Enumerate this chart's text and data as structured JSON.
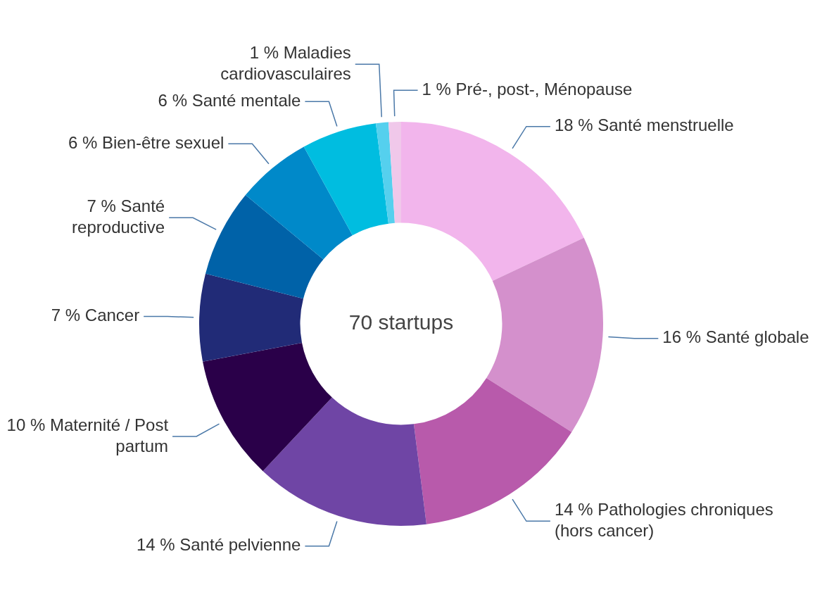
{
  "chart_data": {
    "type": "donut",
    "categories": [
      "Santé menstruelle",
      "Santé globale",
      "Pathologies chroniques (hors cancer)",
      "Santé pelvienne",
      "Maternité / Post partum",
      "Cancer",
      "Santé reproductive",
      "Bien-être sexuel",
      "Santé mentale",
      "Maladies cardiovasculaires",
      "Pré-, post-, Ménopause"
    ],
    "values": [
      18,
      16,
      14,
      14,
      10,
      7,
      7,
      6,
      6,
      1,
      1
    ],
    "value_labels": [
      "18 %",
      "16 %",
      "14 %",
      "14 %",
      "10 %",
      "7 %",
      "7 %",
      "6 %",
      "6 %",
      "1 %",
      "1 %"
    ],
    "colors": [
      "#f2b5ec",
      "#d490cc",
      "#b85aab",
      "#6f45a5",
      "#2a0049",
      "#212b77",
      "#0062a8",
      "#0089c9",
      "#00bde0",
      "#55d0ee",
      "#f0c8ea"
    ],
    "annotations": [
      "70 startups"
    ],
    "legend": false
  }
}
